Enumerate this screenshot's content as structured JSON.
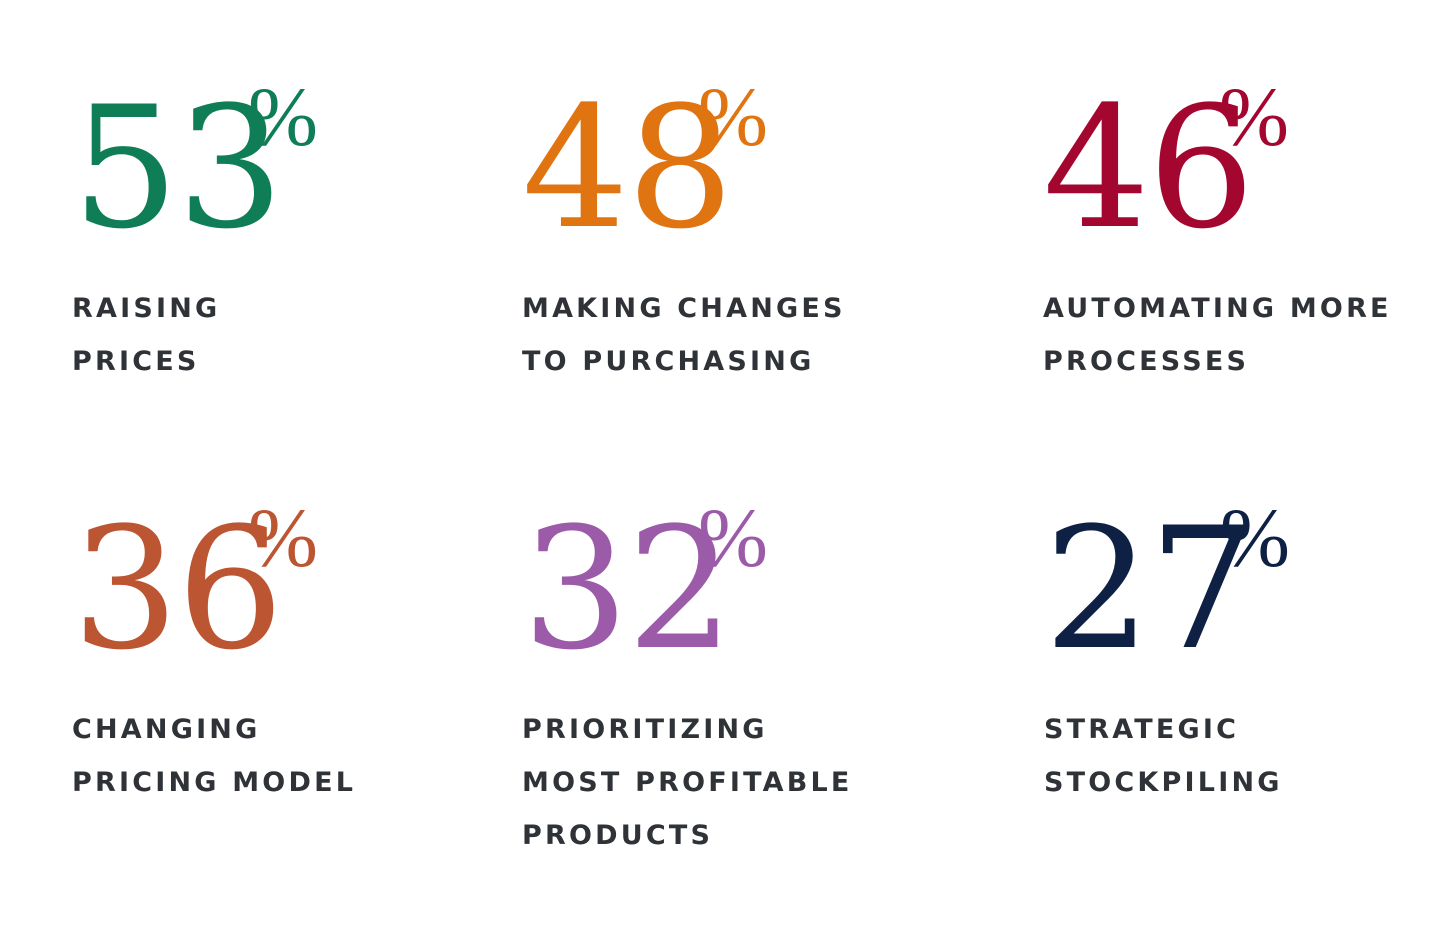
{
  "stats": [
    {
      "value": "53",
      "unit": "%",
      "color": "#0f7d56",
      "lines": [
        "RAISING",
        "PRICES"
      ]
    },
    {
      "value": "48",
      "unit": "%",
      "color": "#e07410",
      "lines": [
        "MAKING CHANGES",
        "TO PURCHASING"
      ]
    },
    {
      "value": "46",
      "unit": "%",
      "color": "#a3072f",
      "lines": [
        "AUTOMATING MORE",
        "PROCESSES"
      ]
    },
    {
      "value": "36",
      "unit": "%",
      "color": "#bb5532",
      "lines": [
        "CHANGING",
        "PRICING MODEL"
      ]
    },
    {
      "value": "32",
      "unit": "%",
      "color": "#9b5ba8",
      "lines": [
        "PRIORITIZING",
        "MOST PROFITABLE",
        "PRODUCTS"
      ]
    },
    {
      "value": "27",
      "unit": "%",
      "color": "#0e2145",
      "lines": [
        "STRATEGIC",
        "STOCKPILING"
      ]
    }
  ]
}
